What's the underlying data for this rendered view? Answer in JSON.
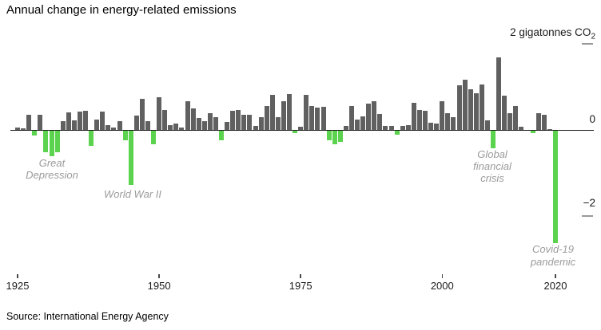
{
  "title": "Annual change in energy-related emissions",
  "source": "Source: International Energy Agency",
  "y_axis": {
    "top_label": "2 gigatonnes CO",
    "top_label_sub": "2",
    "zero_label": "0",
    "bottom_label": "−2"
  },
  "x_axis": {
    "tick_labels": [
      "1925",
      "1950",
      "1975",
      "2000",
      "2020"
    ]
  },
  "annotations": {
    "great_depression": {
      "line1": "Great",
      "line2": "Depression"
    },
    "world_war_ii": {
      "line1": "World War II"
    },
    "global_financial_crisis": {
      "line1": "Global",
      "line2": "financial",
      "line3": "crisis"
    },
    "covid": {
      "line1": "Covid-19",
      "line2": "pandemic"
    }
  },
  "colors": {
    "positive_bar": "#606060",
    "negative_bar": "#5cd34e",
    "axis": "#1c1c1c",
    "annotation_text": "#9b9b9b"
  },
  "chart_data": {
    "type": "bar",
    "title": "Annual change in energy-related emissions",
    "ylabel": "gigatonnes CO2",
    "ylim": [
      -2.8,
      2
    ],
    "gridline_ticks": [
      2,
      0,
      -2
    ],
    "x_tick_years": [
      1925,
      1950,
      1975,
      2000,
      2020
    ],
    "legend": "none",
    "years": [
      1925,
      1926,
      1927,
      1928,
      1929,
      1930,
      1931,
      1932,
      1933,
      1934,
      1935,
      1936,
      1937,
      1938,
      1939,
      1940,
      1941,
      1942,
      1943,
      1944,
      1945,
      1946,
      1947,
      1948,
      1949,
      1950,
      1951,
      1952,
      1953,
      1954,
      1955,
      1956,
      1957,
      1958,
      1959,
      1960,
      1961,
      1962,
      1963,
      1964,
      1965,
      1966,
      1967,
      1968,
      1969,
      1970,
      1971,
      1972,
      1973,
      1974,
      1975,
      1976,
      1977,
      1978,
      1979,
      1980,
      1981,
      1982,
      1983,
      1984,
      1985,
      1986,
      1987,
      1988,
      1989,
      1990,
      1991,
      1992,
      1993,
      1994,
      1995,
      1996,
      1997,
      1998,
      1999,
      2000,
      2001,
      2002,
      2003,
      2004,
      2005,
      2006,
      2007,
      2008,
      2009,
      2010,
      2011,
      2012,
      2013,
      2014,
      2015,
      2016,
      2017,
      2018,
      2019,
      2020
    ],
    "values": [
      0.05,
      0.03,
      0.35,
      -0.12,
      0.35,
      -0.5,
      -0.6,
      -0.5,
      0.2,
      0.4,
      0.23,
      0.42,
      0.45,
      -0.36,
      0.24,
      0.42,
      0.12,
      0.05,
      0.2,
      -0.22,
      -1.25,
      0.33,
      0.72,
      0.21,
      -0.31,
      0.76,
      0.46,
      0.12,
      0.15,
      0.06,
      0.67,
      0.5,
      0.28,
      0.21,
      0.39,
      0.3,
      -0.22,
      0.19,
      0.44,
      0.46,
      0.36,
      0.35,
      0.09,
      0.3,
      0.55,
      0.81,
      0.3,
      0.67,
      0.84,
      -0.06,
      0.07,
      0.81,
      0.55,
      0.52,
      0.54,
      -0.22,
      -0.31,
      -0.25,
      0.09,
      0.56,
      0.25,
      0.31,
      0.62,
      0.67,
      0.37,
      0.09,
      0.1,
      -0.1,
      0.1,
      0.12,
      0.63,
      0.46,
      0.44,
      0.16,
      0.15,
      0.67,
      0.39,
      0.29,
      1.04,
      1.17,
      0.95,
      0.85,
      1.05,
      0.23,
      -0.41,
      1.69,
      0.8,
      0.38,
      0.55,
      0.07,
      0.0,
      -0.06,
      0.38,
      0.35,
      0.02,
      -2.62
    ],
    "annotated_events": [
      {
        "label": "Great Depression",
        "years": "1930-1932"
      },
      {
        "label": "World War II",
        "years": "1945"
      },
      {
        "label": "Global financial crisis",
        "years": "2009"
      },
      {
        "label": "Covid-19 pandemic",
        "years": "2020"
      }
    ]
  }
}
